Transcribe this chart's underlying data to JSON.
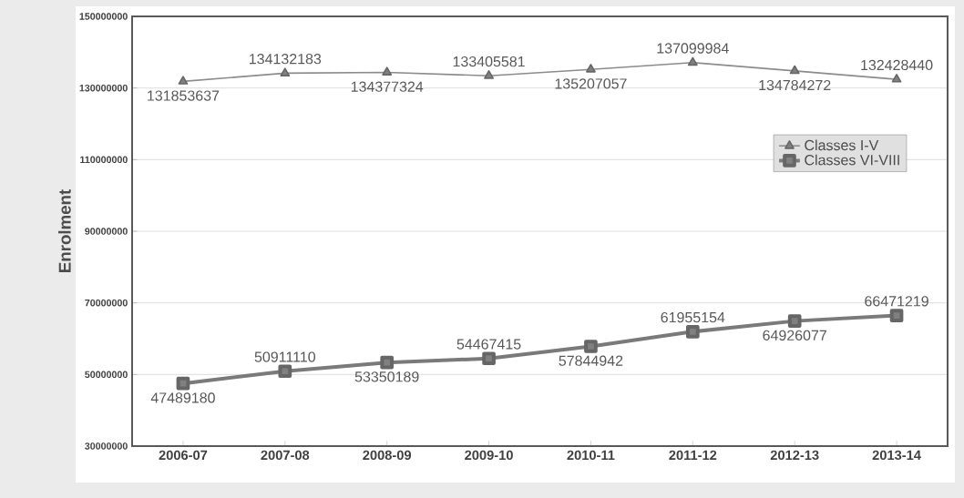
{
  "chart_data": {
    "type": "line",
    "ylabel": "Enrolment",
    "categories": [
      "2006-07",
      "2007-08",
      "2008-09",
      "2009-10",
      "2010-11",
      "2011-12",
      "2012-13",
      "2013-14"
    ],
    "series": [
      {
        "name": "Classes I-V",
        "color": "#8c8c8c",
        "marker": "triangle",
        "values": [
          131853637,
          134132183,
          134377324,
          133405581,
          135207057,
          137099984,
          134784272,
          132428440
        ]
      },
      {
        "name": "Classes VI-VIII",
        "color": "#7a7a7a",
        "marker": "square",
        "values": [
          47489180,
          50911110,
          53350189,
          54467415,
          57844942,
          61955154,
          64926077,
          66471219
        ]
      }
    ],
    "ylim": [
      30000000,
      150000000
    ],
    "yticks": [
      30000000,
      50000000,
      70000000,
      90000000,
      110000000,
      130000000,
      150000000
    ],
    "grid": "y",
    "legend": "right",
    "data_labels": true,
    "line_style": "solid"
  }
}
